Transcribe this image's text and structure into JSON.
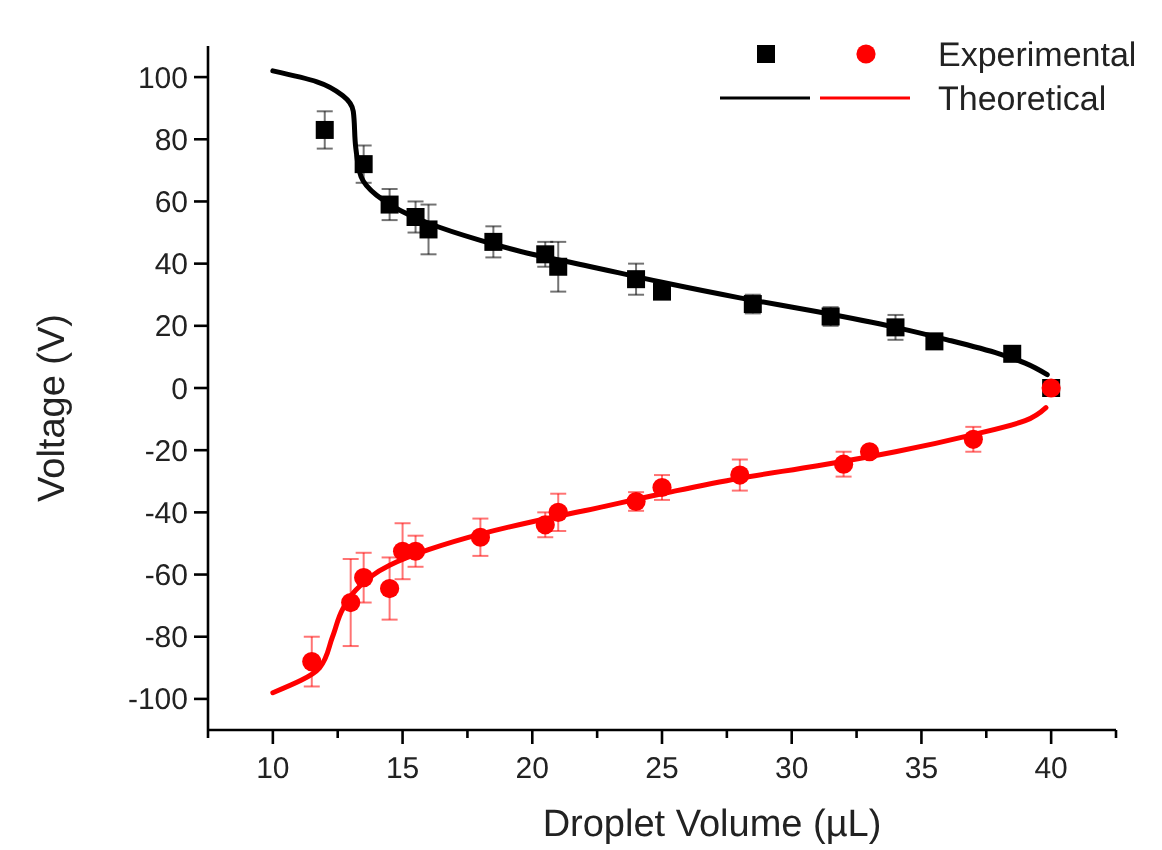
{
  "chart_data": {
    "type": "scatter",
    "xlabel": "Droplet Volume (µL)",
    "ylabel": "Voltage (V)",
    "xlim": [
      7.5,
      42.5
    ],
    "ylim": [
      -110,
      110
    ],
    "xticks": [
      {
        "value": 7.5,
        "label": null
      },
      10,
      {
        "value": 12.5,
        "label": null
      },
      15,
      {
        "value": 17.5,
        "label": null
      },
      20,
      {
        "value": 22.5,
        "label": null
      },
      25,
      {
        "value": 27.5,
        "label": null
      },
      30,
      {
        "value": 32.5,
        "label": null
      },
      35,
      {
        "value": 37.5,
        "label": null
      },
      40,
      {
        "value": 42.5,
        "label": null
      }
    ],
    "yticks": [
      -100,
      -80,
      -60,
      -40,
      -20,
      0,
      20,
      40,
      60,
      80,
      100
    ],
    "grid": false,
    "legend": "top right",
    "series": [
      {
        "marker": "square",
        "color": "#000000",
        "x": [
          12,
          13.5,
          14.5,
          15.5,
          16,
          18.5,
          20.5,
          21,
          24,
          25,
          28.5,
          31.5,
          34,
          35.5,
          38.5,
          40
        ],
        "values": [
          83,
          72,
          59,
          55,
          51,
          47,
          43,
          39,
          35,
          31,
          27,
          23,
          19.5,
          15,
          11,
          0
        ],
        "errors": [
          6,
          6,
          5,
          5,
          8,
          5,
          4,
          8,
          5,
          null,
          3,
          3,
          4,
          null,
          null,
          null
        ]
      },
      {
        "name": "Experimental",
        "marker": "circle",
        "color": "#ff0000",
        "x": [
          11.5,
          13,
          13.5,
          14.5,
          15,
          15.5,
          18,
          20.5,
          21,
          24,
          25,
          28,
          32,
          33,
          37,
          40
        ],
        "values": [
          -88,
          -69,
          -61,
          -64.5,
          -52.5,
          -52.5,
          -48,
          -44,
          -40,
          -36.5,
          -32,
          -28,
          -24.5,
          -20.5,
          -16.5,
          0
        ],
        "errors": [
          8,
          14,
          8,
          10,
          9,
          5,
          6,
          4,
          6,
          3,
          4,
          5,
          4,
          null,
          4,
          null
        ]
      },
      {
        "type": "line",
        "marker": "none",
        "line_style": "solid",
        "color": "#000000",
        "x": [
          10,
          11.7,
          12.7,
          13.1,
          13.2,
          13.4,
          14,
          16,
          18,
          20,
          22,
          25,
          28,
          31,
          34,
          36,
          38,
          39,
          39.85
        ],
        "values": [
          102,
          98.5,
          94,
          89,
          77,
          68,
          62,
          53,
          47.5,
          43,
          39.5,
          34,
          29,
          24.5,
          19.5,
          15.5,
          11,
          8,
          4.3
        ]
      },
      {
        "name": "Theoretical",
        "type": "line",
        "marker": "none",
        "line_style": "solid",
        "color": "#ff0000",
        "x": [
          10,
          11.8,
          12.3,
          12.7,
          13.2,
          14.5,
          16,
          18,
          20,
          22,
          25,
          28,
          31,
          34,
          37,
          39,
          39.8
        ],
        "values": [
          -98,
          -90,
          -80,
          -71,
          -65,
          -57,
          -52,
          -47,
          -43,
          -39.5,
          -34,
          -29,
          -25,
          -20.5,
          -15,
          -10.5,
          -6.3
        ]
      }
    ]
  }
}
